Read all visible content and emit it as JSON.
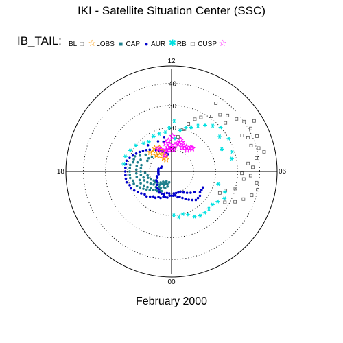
{
  "header": {
    "title": "IKI - Satellite Situation Center (SSC)"
  },
  "footer": {
    "period": "February 2000"
  },
  "colors": {
    "BL": "#555555",
    "LOBS": "#ff9900",
    "CAP": "#1f7f8c",
    "AUR": "#0000cc",
    "RB": "#00e0e0",
    "CUSP": "#ff00ff"
  },
  "chart_data": {
    "type": "scatter",
    "projection": "polar",
    "title": "IKI - Satellite Situation Center (SSC)",
    "series_label": "IB_TAIL:",
    "radial_ticks": [
      "10",
      "20",
      "30",
      "40"
    ],
    "radial_max": 48,
    "local_time_labels": [
      "12",
      "18",
      "00",
      "06"
    ],
    "grid": true,
    "legend_position": "top-left",
    "series": [
      {
        "name": "BL",
        "marker": "open-square",
        "color_key": "BL",
        "points": [
          [
            11.3,
            16
          ],
          [
            10.9,
            20
          ],
          [
            10.7,
            23
          ],
          [
            10.4,
            26
          ],
          [
            10.1,
            28
          ],
          [
            9.6,
            31
          ],
          [
            9.3,
            34
          ],
          [
            9.0,
            36
          ],
          [
            8.6,
            38
          ],
          [
            8.3,
            40
          ],
          [
            7.9,
            41
          ],
          [
            7.5,
            42
          ],
          [
            7.0,
            41
          ],
          [
            6.6,
            39
          ],
          [
            6.2,
            37
          ],
          [
            5.8,
            36
          ],
          [
            5.5,
            39
          ],
          [
            5.2,
            40
          ],
          [
            4.9,
            38
          ],
          [
            4.6,
            35
          ],
          [
            4.3,
            32
          ],
          [
            4.0,
            28
          ],
          [
            9.8,
            37
          ],
          [
            8.8,
            33
          ],
          [
            7.8,
            36
          ],
          [
            7.2,
            38
          ],
          [
            6.8,
            43
          ],
          [
            6.4,
            35
          ],
          [
            5.9,
            32
          ],
          [
            5.6,
            33
          ],
          [
            5.0,
            30
          ],
          [
            4.7,
            26
          ],
          [
            4.4,
            24
          ],
          [
            8.1,
            44
          ],
          [
            7.6,
            38
          ]
        ]
      },
      {
        "name": "LOBS",
        "marker": "open-star",
        "color_key": "LOBS",
        "points": [
          [
            14.2,
            12
          ],
          [
            13.9,
            11
          ],
          [
            13.7,
            10
          ],
          [
            13.4,
            9
          ],
          [
            13.2,
            8
          ],
          [
            15.0,
            12
          ],
          [
            14.8,
            10
          ],
          [
            14.5,
            9
          ],
          [
            14.0,
            7
          ],
          [
            13.6,
            6
          ],
          [
            15.2,
            13
          ],
          [
            14.4,
            13
          ],
          [
            13.8,
            12
          ]
        ]
      },
      {
        "name": "CAP",
        "marker": "dot",
        "color_key": "CAP",
        "points": [
          [
            16.2,
            16
          ],
          [
            16.5,
            18
          ],
          [
            16.8,
            18
          ],
          [
            17.1,
            18
          ],
          [
            17.4,
            19
          ],
          [
            17.7,
            19
          ],
          [
            18.0,
            19
          ],
          [
            18.3,
            19
          ],
          [
            18.6,
            19
          ],
          [
            18.9,
            18
          ],
          [
            19.2,
            18
          ],
          [
            19.5,
            17
          ],
          [
            19.8,
            16
          ],
          [
            20.1,
            15
          ],
          [
            20.4,
            14
          ],
          [
            20.7,
            13
          ],
          [
            21.0,
            12
          ],
          [
            21.3,
            11
          ],
          [
            21.6,
            11
          ],
          [
            21.9,
            10
          ],
          [
            22.2,
            10
          ],
          [
            16.6,
            15
          ],
          [
            17.0,
            16
          ],
          [
            17.4,
            16
          ],
          [
            17.8,
            16
          ],
          [
            18.2,
            16
          ],
          [
            18.6,
            16
          ],
          [
            19.0,
            15
          ],
          [
            19.4,
            15
          ],
          [
            19.8,
            14
          ],
          [
            20.2,
            13
          ],
          [
            20.6,
            12
          ],
          [
            21.0,
            10
          ],
          [
            21.4,
            9
          ],
          [
            21.8,
            9
          ],
          [
            22.2,
            8
          ],
          [
            22.6,
            8
          ],
          [
            23.0,
            7
          ],
          [
            17.2,
            14
          ],
          [
            17.6,
            14
          ],
          [
            18.0,
            14
          ],
          [
            18.4,
            14
          ],
          [
            18.8,
            13
          ],
          [
            19.2,
            13
          ],
          [
            19.6,
            12
          ],
          [
            20.0,
            11
          ],
          [
            20.4,
            10
          ],
          [
            20.8,
            9
          ],
          [
            21.2,
            8
          ],
          [
            21.6,
            7
          ],
          [
            22.0,
            7
          ],
          [
            22.4,
            6
          ],
          [
            22.8,
            6
          ],
          [
            23.2,
            5
          ],
          [
            18.2,
            12
          ],
          [
            18.6,
            11
          ],
          [
            19.0,
            11
          ],
          [
            19.4,
            10
          ],
          [
            19.8,
            9
          ],
          [
            20.2,
            9
          ],
          [
            20.6,
            8
          ],
          [
            21.0,
            7
          ],
          [
            21.4,
            6
          ],
          [
            21.8,
            6
          ],
          [
            22.2,
            5
          ],
          [
            15.8,
            14
          ],
          [
            16.0,
            12
          ],
          [
            16.4,
            12
          ],
          [
            15.6,
            11
          ]
        ]
      },
      {
        "name": "AUR",
        "marker": "dot",
        "color_key": "AUR",
        "points": [
          [
            15.0,
            14
          ],
          [
            15.3,
            15
          ],
          [
            15.6,
            16
          ],
          [
            15.9,
            17
          ],
          [
            16.2,
            18
          ],
          [
            16.5,
            19
          ],
          [
            16.8,
            20
          ],
          [
            17.1,
            21
          ],
          [
            17.4,
            21
          ],
          [
            17.7,
            21
          ],
          [
            18.0,
            21
          ],
          [
            18.3,
            21
          ],
          [
            18.6,
            21
          ],
          [
            18.9,
            21
          ],
          [
            19.2,
            20
          ],
          [
            19.5,
            20
          ],
          [
            19.8,
            19
          ],
          [
            20.1,
            18
          ],
          [
            20.4,
            17
          ],
          [
            20.7,
            16
          ],
          [
            21.0,
            16
          ],
          [
            21.3,
            15
          ],
          [
            21.6,
            14
          ],
          [
            21.9,
            14
          ],
          [
            22.2,
            13
          ],
          [
            22.5,
            13
          ],
          [
            22.8,
            12
          ],
          [
            23.1,
            12
          ],
          [
            23.4,
            12
          ],
          [
            23.7,
            11
          ],
          [
            0.0,
            11
          ],
          [
            0.3,
            11
          ],
          [
            0.6,
            11
          ],
          [
            0.9,
            12
          ],
          [
            1.2,
            12
          ],
          [
            1.5,
            13
          ],
          [
            1.8,
            14
          ],
          [
            2.1,
            15
          ],
          [
            2.4,
            16
          ],
          [
            2.7,
            17
          ],
          [
            3.0,
            17
          ],
          [
            3.3,
            17
          ],
          [
            3.6,
            16
          ],
          [
            3.9,
            16
          ],
          [
            4.2,
            16
          ],
          [
            12.8,
            8
          ],
          [
            13.2,
            9
          ],
          [
            13.6,
            10
          ],
          [
            14.0,
            11
          ],
          [
            14.4,
            12
          ],
          [
            16.3,
            5
          ],
          [
            16.8,
            5
          ],
          [
            17.2,
            6
          ],
          [
            17.6,
            6
          ],
          [
            18.0,
            6
          ],
          [
            18.4,
            6
          ],
          [
            18.8,
            6
          ],
          [
            19.2,
            7
          ],
          [
            19.6,
            7
          ],
          [
            20.0,
            8
          ],
          [
            20.4,
            8
          ],
          [
            20.8,
            9
          ],
          [
            21.2,
            10
          ],
          [
            21.6,
            10
          ],
          [
            22.0,
            11
          ],
          [
            22.4,
            11
          ],
          [
            22.8,
            11
          ],
          [
            23.2,
            10
          ],
          [
            23.6,
            10
          ],
          [
            0.4,
            10
          ],
          [
            0.8,
            10
          ],
          [
            1.2,
            10
          ],
          [
            1.6,
            10
          ],
          [
            2.0,
            11
          ],
          [
            2.4,
            12
          ],
          [
            2.8,
            13
          ],
          [
            3.2,
            14
          ],
          [
            13.0,
            14
          ],
          [
            12.8,
            16
          ],
          [
            13.6,
            15
          ],
          [
            14.8,
            16
          ]
        ]
      },
      {
        "name": "RB",
        "marker": "asterisk",
        "color_key": "RB",
        "points": [
          [
            14.5,
            17
          ],
          [
            15.0,
            18
          ],
          [
            15.6,
            20
          ],
          [
            16.2,
            21
          ],
          [
            16.8,
            22
          ],
          [
            17.4,
            22
          ],
          [
            13.8,
            18
          ],
          [
            13.2,
            18
          ],
          [
            12.6,
            18
          ],
          [
            11.6,
            15
          ],
          [
            11.2,
            19
          ],
          [
            10.8,
            21
          ],
          [
            10.4,
            22
          ],
          [
            10.0,
            24
          ],
          [
            9.6,
            26
          ],
          [
            9.2,
            28
          ],
          [
            8.8,
            30
          ],
          [
            8.4,
            27
          ],
          [
            8.0,
            30
          ],
          [
            7.6,
            25
          ],
          [
            7.2,
            29
          ],
          [
            6.8,
            28
          ],
          [
            3.8,
            25
          ],
          [
            3.4,
            24
          ],
          [
            3.0,
            24
          ],
          [
            2.6,
            24
          ],
          [
            2.2,
            24
          ],
          [
            1.8,
            23
          ],
          [
            1.4,
            21
          ],
          [
            1.0,
            20
          ],
          [
            0.6,
            21
          ],
          [
            0.2,
            20
          ],
          [
            4.2,
            27
          ],
          [
            4.6,
            26
          ],
          [
            5.0,
            22
          ],
          [
            12.2,
            20
          ],
          [
            11.8,
            23
          ]
        ]
      },
      {
        "name": "CUSP",
        "marker": "open-star",
        "color_key": "CUSP",
        "points": [
          [
            13.4,
            8
          ],
          [
            13.1,
            9
          ],
          [
            12.9,
            10
          ],
          [
            12.6,
            11
          ],
          [
            12.4,
            10
          ],
          [
            12.2,
            12
          ],
          [
            12.0,
            11
          ],
          [
            11.7,
            10
          ],
          [
            11.5,
            12
          ],
          [
            11.2,
            13
          ],
          [
            11.0,
            13
          ],
          [
            10.7,
            14
          ],
          [
            10.4,
            12
          ],
          [
            10.2,
            13
          ],
          [
            9.9,
            13
          ],
          [
            9.6,
            12
          ],
          [
            9.4,
            14
          ],
          [
            9.2,
            14
          ],
          [
            13.7,
            11
          ],
          [
            14.0,
            12
          ],
          [
            12.8,
            13
          ],
          [
            12.4,
            14
          ],
          [
            11.9,
            16
          ],
          [
            10.9,
            15
          ]
        ]
      }
    ]
  }
}
